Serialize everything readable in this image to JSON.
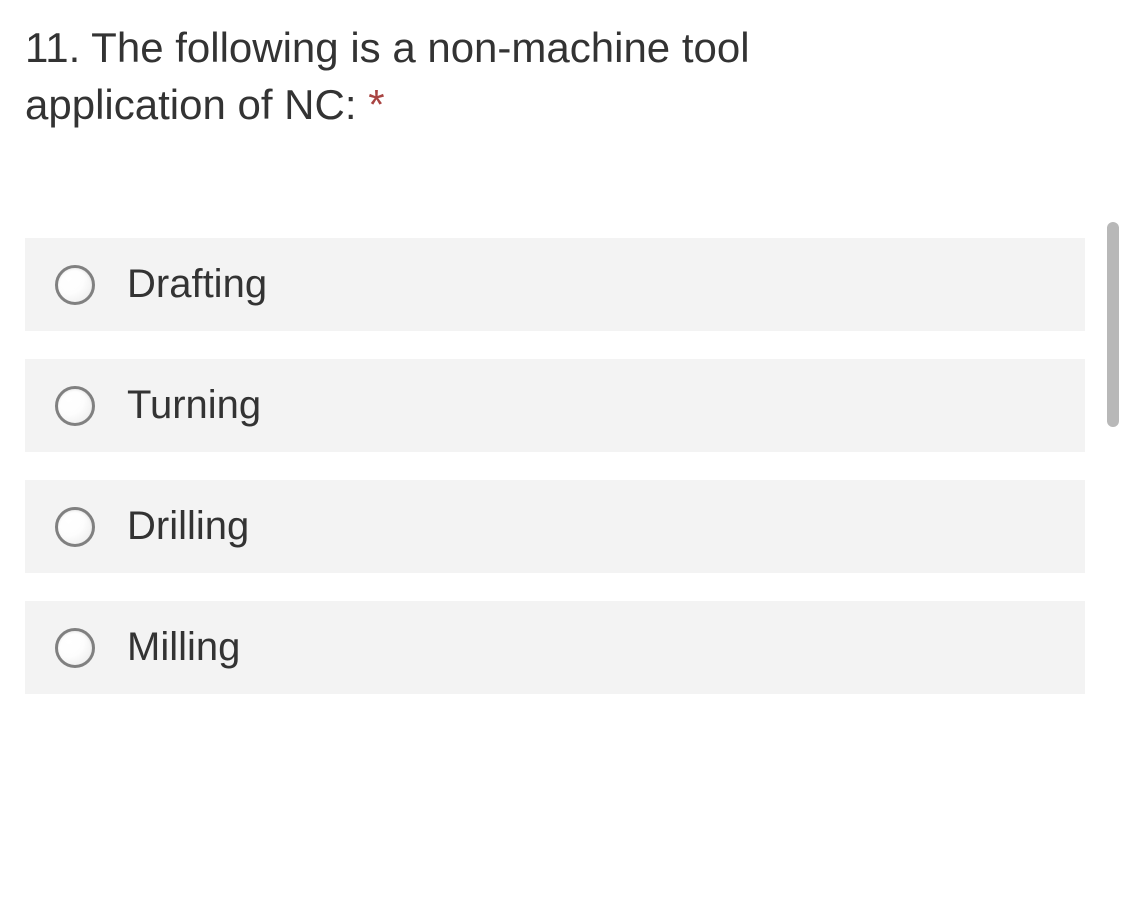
{
  "question": {
    "number": "11.",
    "text_line1": "11. The following is a non-machine tool",
    "text_line2": "application of NC:",
    "required_marker": "*"
  },
  "options": [
    {
      "label": "Drafting",
      "selected": false
    },
    {
      "label": "Turning",
      "selected": false
    },
    {
      "label": "Drilling",
      "selected": false
    },
    {
      "label": "Milling",
      "selected": false
    }
  ],
  "colors": {
    "background": "#ffffff",
    "option_bg": "#f3f3f3",
    "text": "#333333",
    "required": "#a94442",
    "radio_border": "#808080",
    "scrollbar": "#b8b8b8"
  }
}
